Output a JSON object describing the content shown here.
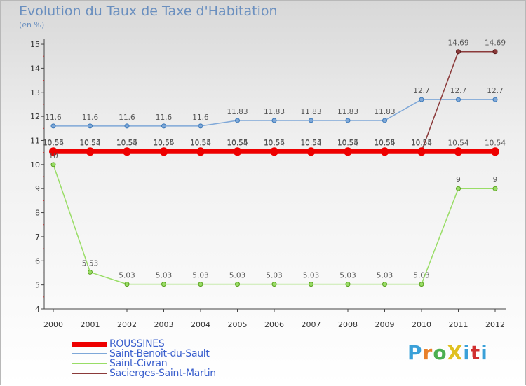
{
  "page": {
    "title": "Evolution du Taux de Taxe d'Habitation",
    "subtitle": "(en %)",
    "brand": "ProXiti",
    "brand_colors": [
      "#3aa0d8",
      "#e8802a",
      "#4caf50",
      "#e0c020",
      "#3aa0d8",
      "#d03030"
    ]
  },
  "chart_data": {
    "type": "line",
    "title": "Evolution du Taux de Taxe d'Habitation",
    "subtitle": "(en %)",
    "xlabel": "",
    "ylabel": "",
    "categories": [
      "2000",
      "2001",
      "2002",
      "2003",
      "2004",
      "2005",
      "2006",
      "2007",
      "2008",
      "2009",
      "2010",
      "2011",
      "2012"
    ],
    "ylim": [
      4,
      15
    ],
    "yticks": [
      "4",
      "5",
      "6",
      "7",
      "8",
      "9",
      "10",
      "11",
      "12",
      "13",
      "14",
      "15"
    ],
    "grid": false,
    "legend": "bottom-left",
    "series": [
      {
        "name": "ROUSSINES",
        "color": "#ee0000",
        "values": [
          10.54,
          10.54,
          10.54,
          10.54,
          10.54,
          10.54,
          10.54,
          10.54,
          10.54,
          10.54,
          10.54,
          10.54,
          10.54
        ],
        "labels": [
          "10.54",
          "10.54",
          "10.54",
          "10.54",
          "10.54",
          "10.54",
          "10.54",
          "10.54",
          "10.54",
          "10.54",
          "10.54",
          "10.54",
          "10.54"
        ]
      },
      {
        "name": "Saint-Benoît-du-Sault",
        "color": "#7fa8d8",
        "values": [
          11.6,
          11.6,
          11.6,
          11.6,
          11.6,
          11.83,
          11.83,
          11.83,
          11.83,
          11.83,
          12.7,
          12.7,
          12.7
        ],
        "labels": [
          "11.6",
          "11.6",
          "11.6",
          "11.6",
          "11.6",
          "11.83",
          "11.83",
          "11.83",
          "11.83",
          "11.83",
          "12.7",
          "12.7",
          "12.7"
        ]
      },
      {
        "name": "Saint-Civran",
        "color": "#99dd66",
        "values": [
          10,
          5.53,
          5.03,
          5.03,
          5.03,
          5.03,
          5.03,
          5.03,
          5.03,
          5.03,
          5.03,
          9,
          9
        ],
        "labels": [
          "10",
          "5.53",
          "5.03",
          "5.03",
          "5.03",
          "5.03",
          "5.03",
          "5.03",
          "5.03",
          "5.03",
          "5.03",
          "9",
          "9"
        ]
      },
      {
        "name": "Sacierges-Saint-Martin",
        "color": "#8b3a3a",
        "values": [
          10.55,
          10.55,
          10.55,
          10.55,
          10.55,
          10.55,
          10.55,
          10.55,
          10.55,
          10.55,
          10.55,
          14.69,
          14.69
        ],
        "labels": [
          "10.55",
          "10.55",
          "10.55",
          "10.55",
          "10.55",
          "10.55",
          "10.55",
          "10.55",
          "10.55",
          "10.55",
          "10.55",
          "14.69",
          "14.69"
        ]
      }
    ]
  }
}
